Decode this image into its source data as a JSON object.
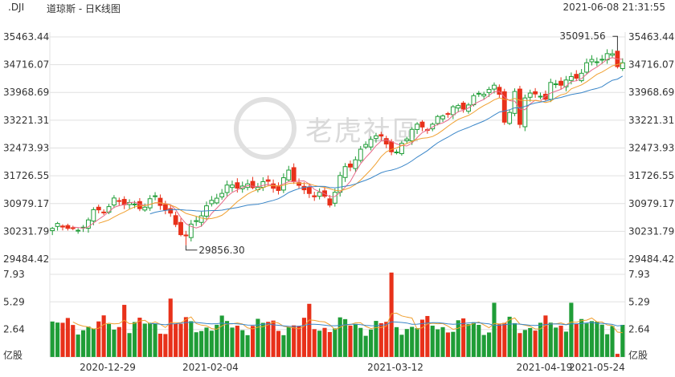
{
  "header": {
    "symbol": ".DJI",
    "title": "道琼斯 - 日K线图",
    "datetime": "2021-06-08 21:31:55"
  },
  "watermark": "老虎社區",
  "colors": {
    "up": "#1f9d37",
    "down": "#e8311a",
    "ma1": "#e86a8a",
    "ma2": "#f0a030",
    "ma3": "#3a86c8",
    "grid": "#e0e0e0",
    "text": "#333333"
  },
  "chart_data": {
    "type": "candlestick",
    "price_axis": {
      "ticks": [
        "35463.44",
        "34716.07",
        "33968.69",
        "33221.31",
        "32473.93",
        "31726.55",
        "30979.17",
        "30231.79",
        "29484.42"
      ],
      "range": [
        29484.42,
        35463.44
      ]
    },
    "volume_axis": {
      "ticks": [
        "7.93",
        "5.29",
        "2.64",
        "亿股"
      ],
      "max": 7.93,
      "unit": "亿股"
    },
    "x_labels": [
      "2020-12-29",
      "2021-02-04",
      "2021-03-12",
      "2021-04-19",
      "2021-05-24"
    ],
    "annotations": [
      {
        "text": "35091.56",
        "bar": 110,
        "price": 35091.56
      },
      {
        "text": "29856.30",
        "bar": 26,
        "price": 29856.3
      }
    ],
    "candles": [],
    "volumes": [],
    "moving_averages": []
  }
}
